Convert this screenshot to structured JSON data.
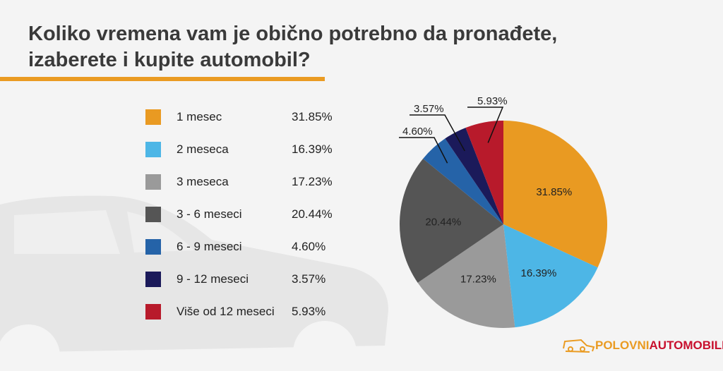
{
  "title": "Koliko vremena vam je obično potrebno da pronađete, izaberete i kupite automobil?",
  "chart_data": {
    "type": "pie",
    "start": "top",
    "direction": "clockwise",
    "categories": [
      "1 mesec",
      "2 meseca",
      "3 meseca",
      "3 - 6 meseci",
      "6 - 9 meseci",
      "9 - 12 meseci",
      "Više od 12 meseci"
    ],
    "values": [
      31.85,
      16.39,
      17.23,
      20.44,
      4.6,
      3.57,
      5.93
    ],
    "labels": [
      "31.85%",
      "16.39%",
      "17.23%",
      "20.44%",
      "4.60%",
      "3.57%",
      "5.93%"
    ],
    "colors": [
      "#e99a22",
      "#4db6e6",
      "#9a9a9a",
      "#555555",
      "#2563a8",
      "#1b1a5a",
      "#b81a2b"
    ],
    "legend": "left"
  },
  "logo": {
    "part1": "POLOVNI",
    "part2": "AUTOMOBILI",
    "color1": "#ea9b22",
    "color2": "#c8102e"
  }
}
